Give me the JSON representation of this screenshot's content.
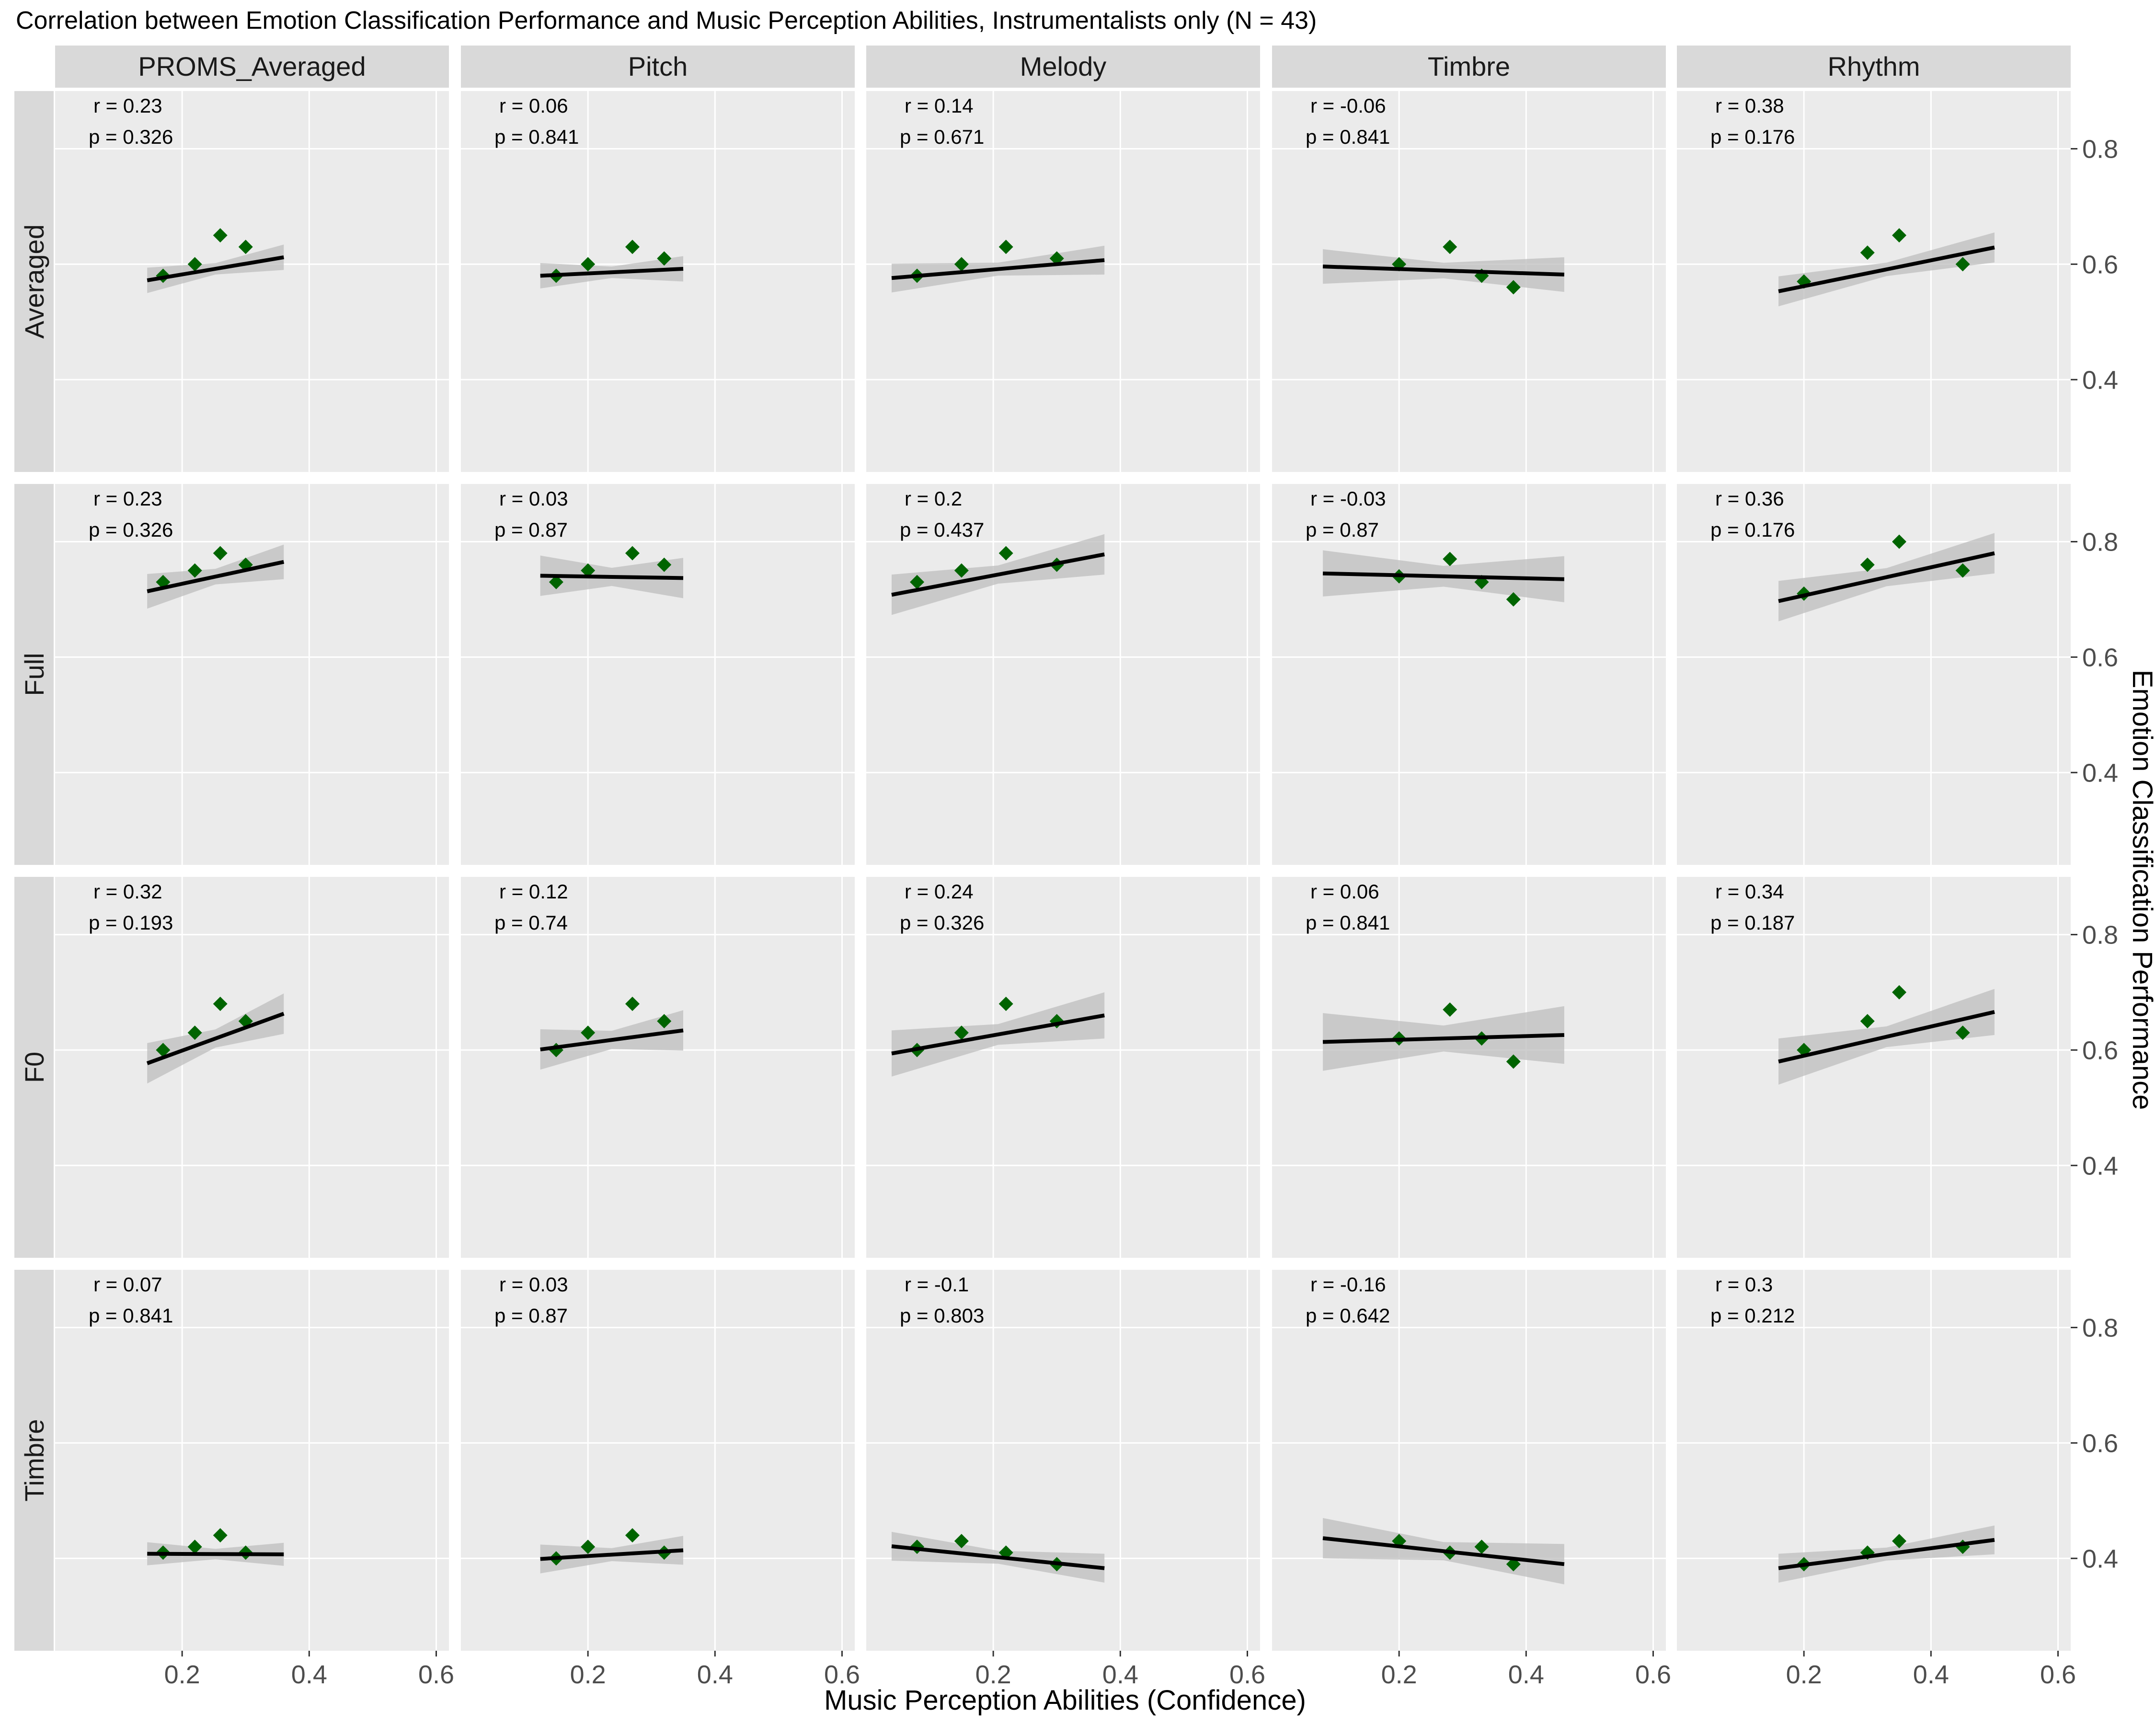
{
  "chart_data": {
    "type": "scatter",
    "title": "Correlation between Emotion Classification Performance and Music Perception Abilities, Instrumentalists only (N = 43)",
    "xlabel": "Music Perception Abilities (Confidence)",
    "ylabel": "Emotion Classification Performance",
    "xlim": [
      0.0,
      0.62
    ],
    "ylim": [
      0.24,
      0.9
    ],
    "x_ticks": [
      0.2,
      0.4,
      0.6
    ],
    "x_tick_labels": [
      "0.2",
      "0.4",
      "0.6"
    ],
    "y_ticks": [
      0.4,
      0.6,
      0.8
    ],
    "y_tick_labels": [
      "0.4",
      "0.6",
      "0.8"
    ],
    "grid": true,
    "colors": {
      "point": "#006400",
      "panel": "#ebebeb",
      "strip": "#d9d9d9",
      "grid": "#ffffff",
      "ribbon": "#bdbdbd",
      "line": "#000000"
    },
    "columns": [
      "PROMS_Averaged",
      "Pitch",
      "Melody",
      "Timbre",
      "Rhythm"
    ],
    "rows": [
      "Averaged",
      "Full",
      "F0",
      "Timbre"
    ],
    "col_x_ranges": [
      [
        0.145,
        0.36
      ],
      [
        0.125,
        0.35
      ],
      [
        0.04,
        0.375
      ],
      [
        0.08,
        0.46
      ],
      [
        0.16,
        0.5
      ]
    ],
    "panels": [
      [
        {
          "stats": [
            "r = 0.23",
            "p = 0.326"
          ],
          "fit": [
            0.572,
            0.612
          ],
          "band": 0.022,
          "points": [
            [
              0.17,
              0.58
            ],
            [
              0.22,
              0.6
            ],
            [
              0.26,
              0.65
            ],
            [
              0.3,
              0.63
            ]
          ]
        },
        {
          "stats": [
            "r = 0.06",
            "p = 0.841"
          ],
          "fit": [
            0.58,
            0.592
          ],
          "band": 0.022,
          "points": [
            [
              0.15,
              0.58
            ],
            [
              0.2,
              0.6
            ],
            [
              0.27,
              0.63
            ],
            [
              0.32,
              0.61
            ]
          ]
        },
        {
          "stats": [
            "r = 0.14",
            "p = 0.671"
          ],
          "fit": [
            0.576,
            0.607
          ],
          "band": 0.025,
          "points": [
            [
              0.08,
              0.58
            ],
            [
              0.15,
              0.6
            ],
            [
              0.22,
              0.63
            ],
            [
              0.3,
              0.61
            ]
          ]
        },
        {
          "stats": [
            "r = -0.06",
            "p = 0.841"
          ],
          "fit": [
            0.596,
            0.582
          ],
          "band": 0.03,
          "points": [
            [
              0.2,
              0.6
            ],
            [
              0.28,
              0.63
            ],
            [
              0.33,
              0.58
            ],
            [
              0.38,
              0.56
            ]
          ]
        },
        {
          "stats": [
            "r = 0.38",
            "p = 0.176"
          ],
          "fit": [
            0.553,
            0.629
          ],
          "band": 0.026,
          "points": [
            [
              0.2,
              0.57
            ],
            [
              0.3,
              0.62
            ],
            [
              0.35,
              0.65
            ],
            [
              0.45,
              0.6
            ]
          ]
        }
      ],
      [
        {
          "stats": [
            "r = 0.23",
            "p = 0.326"
          ],
          "fit": [
            0.714,
            0.765
          ],
          "band": 0.03,
          "points": [
            [
              0.17,
              0.73
            ],
            [
              0.22,
              0.75
            ],
            [
              0.26,
              0.78
            ],
            [
              0.3,
              0.76
            ]
          ]
        },
        {
          "stats": [
            "r = 0.03",
            "p = 0.87"
          ],
          "fit": [
            0.741,
            0.737
          ],
          "band": 0.035,
          "points": [
            [
              0.15,
              0.73
            ],
            [
              0.2,
              0.75
            ],
            [
              0.27,
              0.78
            ],
            [
              0.32,
              0.76
            ]
          ]
        },
        {
          "stats": [
            "r = 0.2",
            "p = 0.437"
          ],
          "fit": [
            0.708,
            0.778
          ],
          "band": 0.035,
          "points": [
            [
              0.08,
              0.73
            ],
            [
              0.15,
              0.75
            ],
            [
              0.22,
              0.78
            ],
            [
              0.3,
              0.76
            ]
          ]
        },
        {
          "stats": [
            "r = -0.03",
            "p = 0.87"
          ],
          "fit": [
            0.745,
            0.735
          ],
          "band": 0.04,
          "points": [
            [
              0.2,
              0.74
            ],
            [
              0.28,
              0.77
            ],
            [
              0.33,
              0.73
            ],
            [
              0.38,
              0.7
            ]
          ]
        },
        {
          "stats": [
            "r = 0.36",
            "p = 0.176"
          ],
          "fit": [
            0.697,
            0.78
          ],
          "band": 0.035,
          "points": [
            [
              0.2,
              0.71
            ],
            [
              0.3,
              0.76
            ],
            [
              0.35,
              0.8
            ],
            [
              0.45,
              0.75
            ]
          ]
        }
      ],
      [
        {
          "stats": [
            "r = 0.32",
            "p = 0.193"
          ],
          "fit": [
            0.577,
            0.663
          ],
          "band": 0.035,
          "points": [
            [
              0.17,
              0.6
            ],
            [
              0.22,
              0.63
            ],
            [
              0.26,
              0.68
            ],
            [
              0.3,
              0.65
            ]
          ]
        },
        {
          "stats": [
            "r = 0.12",
            "p = 0.74"
          ],
          "fit": [
            0.601,
            0.634
          ],
          "band": 0.035,
          "points": [
            [
              0.15,
              0.6
            ],
            [
              0.2,
              0.63
            ],
            [
              0.27,
              0.68
            ],
            [
              0.32,
              0.65
            ]
          ]
        },
        {
          "stats": [
            "r = 0.24",
            "p = 0.326"
          ],
          "fit": [
            0.594,
            0.66
          ],
          "band": 0.04,
          "points": [
            [
              0.08,
              0.6
            ],
            [
              0.15,
              0.63
            ],
            [
              0.22,
              0.68
            ],
            [
              0.3,
              0.65
            ]
          ]
        },
        {
          "stats": [
            "r = 0.06",
            "p = 0.841"
          ],
          "fit": [
            0.614,
            0.626
          ],
          "band": 0.05,
          "points": [
            [
              0.2,
              0.62
            ],
            [
              0.28,
              0.67
            ],
            [
              0.33,
              0.62
            ],
            [
              0.38,
              0.58
            ]
          ]
        },
        {
          "stats": [
            "r = 0.34",
            "p = 0.187"
          ],
          "fit": [
            0.58,
            0.666
          ],
          "band": 0.04,
          "points": [
            [
              0.2,
              0.6
            ],
            [
              0.3,
              0.65
            ],
            [
              0.35,
              0.7
            ],
            [
              0.45,
              0.63
            ]
          ]
        }
      ],
      [
        {
          "stats": [
            "r = 0.07",
            "p = 0.841"
          ],
          "fit": [
            0.408,
            0.407
          ],
          "band": 0.02,
          "points": [
            [
              0.17,
              0.41
            ],
            [
              0.22,
              0.42
            ],
            [
              0.26,
              0.44
            ],
            [
              0.3,
              0.41
            ]
          ]
        },
        {
          "stats": [
            "r = 0.03",
            "p = 0.87"
          ],
          "fit": [
            0.399,
            0.414
          ],
          "band": 0.025,
          "points": [
            [
              0.15,
              0.4
            ],
            [
              0.2,
              0.42
            ],
            [
              0.27,
              0.44
            ],
            [
              0.32,
              0.41
            ]
          ]
        },
        {
          "stats": [
            "r = -0.1",
            "p = 0.803"
          ],
          "fit": [
            0.421,
            0.383
          ],
          "band": 0.025,
          "points": [
            [
              0.08,
              0.42
            ],
            [
              0.15,
              0.43
            ],
            [
              0.22,
              0.41
            ],
            [
              0.3,
              0.39
            ]
          ]
        },
        {
          "stats": [
            "r = -0.16",
            "p = 0.642"
          ],
          "fit": [
            0.435,
            0.39
          ],
          "band": 0.035,
          "points": [
            [
              0.2,
              0.43
            ],
            [
              0.28,
              0.41
            ],
            [
              0.33,
              0.42
            ],
            [
              0.38,
              0.39
            ]
          ]
        },
        {
          "stats": [
            "r = 0.3",
            "p = 0.212"
          ],
          "fit": [
            0.383,
            0.432
          ],
          "band": 0.025,
          "points": [
            [
              0.2,
              0.39
            ],
            [
              0.3,
              0.41
            ],
            [
              0.35,
              0.43
            ],
            [
              0.45,
              0.42
            ]
          ]
        }
      ]
    ]
  }
}
